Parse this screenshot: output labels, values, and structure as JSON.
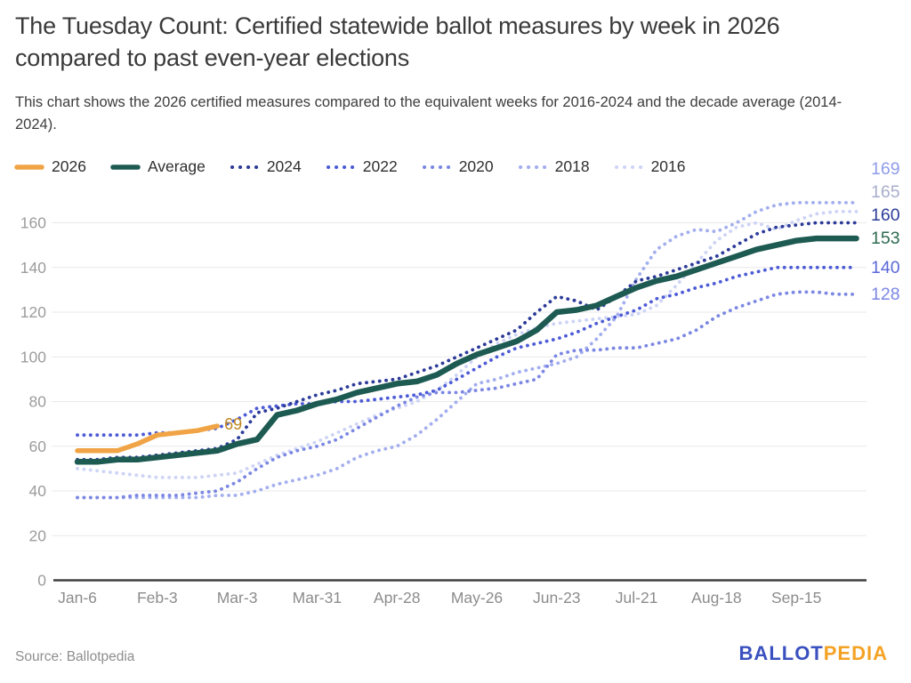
{
  "header": {
    "title": "The Tuesday Count: Certified statewide ballot measures by week in 2026 compared to past even-year elections",
    "subtitle": "This chart shows the 2026 certified measures compared to the equivalent weeks for 2016-2024 and the decade average (2014-2024)."
  },
  "footer": {
    "source": "Source: Ballotpedia",
    "logo": {
      "part1": "BALLOT",
      "part2": "PEDIA"
    }
  },
  "chart_data": {
    "type": "line",
    "x": [
      "Jan-6",
      "Jan-13",
      "Jan-20",
      "Jan-27",
      "Feb-3",
      "Feb-10",
      "Feb-17",
      "Feb-24",
      "Mar-3",
      "Mar-10",
      "Mar-17",
      "Mar-24",
      "Mar-31",
      "Apr-7",
      "Apr-14",
      "Apr-21",
      "Apr-28",
      "May-5",
      "May-12",
      "May-19",
      "May-26",
      "Jun-2",
      "Jun-9",
      "Jun-16",
      "Jun-23",
      "Jun-30",
      "Jul-7",
      "Jul-14",
      "Jul-21",
      "Jul-28",
      "Aug-4",
      "Aug-11",
      "Aug-18",
      "Aug-25",
      "Sep-1",
      "Sep-8",
      "Sep-15",
      "Sep-22",
      "Sep-29",
      "Oct-6"
    ],
    "x_tick_labels": [
      "Jan-6",
      "Feb-3",
      "Mar-3",
      "Mar-31",
      "Apr-28",
      "May-26",
      "Jun-23",
      "Jul-21",
      "Aug-18",
      "Sep-15"
    ],
    "x_tick_indices": [
      0,
      4,
      8,
      12,
      16,
      20,
      24,
      28,
      32,
      36
    ],
    "ylim": [
      0,
      160
    ],
    "y_ticks": [
      0,
      20,
      40,
      60,
      80,
      100,
      120,
      140,
      160
    ],
    "grid": "horizontal",
    "legend_position": "top-left",
    "series": [
      {
        "name": "2026",
        "style": "solid",
        "color": "#f0a445",
        "label_color": "#c0861f",
        "end_label": null,
        "values": [
          58,
          58,
          58,
          61,
          65,
          66,
          67,
          69
        ]
      },
      {
        "name": "Average",
        "style": "solid",
        "color": "#1d5a52",
        "label_color": "#2e6b52",
        "end_label": "153",
        "values": [
          53,
          53,
          54,
          54,
          55,
          56,
          57,
          58,
          61,
          63,
          74,
          76,
          79,
          81,
          84,
          86,
          88,
          89,
          92,
          97,
          101,
          104,
          107,
          112,
          120,
          121,
          123,
          127,
          131,
          134,
          136,
          139,
          142,
          145,
          148,
          150,
          152,
          153,
          153,
          153
        ]
      },
      {
        "name": "2024",
        "style": "dotted",
        "color": "#2c3b99",
        "label_color": "#2c3b99",
        "end_label": "160",
        "values": [
          54,
          54,
          55,
          55,
          56,
          57,
          58,
          59,
          63,
          75,
          77,
          80,
          83,
          85,
          88,
          89,
          90,
          93,
          96,
          100,
          104,
          108,
          112,
          120,
          127,
          125,
          121,
          127,
          134,
          136,
          139,
          142,
          145,
          150,
          155,
          158,
          159,
          160,
          160,
          160
        ]
      },
      {
        "name": "2022",
        "style": "dotted",
        "color": "#4d5cd6",
        "label_color": "#5b68d8",
        "end_label": "140",
        "values": [
          65,
          65,
          65,
          65,
          66,
          66,
          67,
          68,
          72,
          77,
          78,
          79,
          79,
          80,
          80,
          81,
          82,
          83,
          85,
          90,
          95,
          100,
          104,
          106,
          108,
          111,
          115,
          118,
          121,
          126,
          128,
          131,
          133,
          136,
          138,
          140,
          140,
          140,
          140,
          140
        ]
      },
      {
        "name": "2020",
        "style": "dotted",
        "color": "#7b87e3",
        "label_color": "#7b87e3",
        "end_label": "128",
        "values": [
          37,
          37,
          37,
          38,
          38,
          38,
          39,
          40,
          44,
          50,
          55,
          58,
          60,
          63,
          68,
          73,
          78,
          82,
          84,
          84,
          85,
          86,
          88,
          90,
          101,
          103,
          103,
          104,
          104,
          106,
          108,
          112,
          118,
          122,
          125,
          128,
          129,
          129,
          128,
          128
        ]
      },
      {
        "name": "2018",
        "style": "dotted",
        "color": "#a3aeee",
        "label_color": "#8f9ce9",
        "end_label": "169",
        "values": [
          37,
          37,
          37,
          37,
          37,
          37,
          37,
          38,
          38,
          40,
          43,
          45,
          47,
          50,
          55,
          58,
          60,
          65,
          72,
          80,
          88,
          90,
          93,
          95,
          97,
          100,
          108,
          118,
          135,
          148,
          154,
          157,
          156,
          160,
          165,
          168,
          169,
          169,
          169,
          169
        ]
      },
      {
        "name": "2016",
        "style": "dotted",
        "color": "#cdd4f5",
        "label_color": "#a9aecb",
        "end_label": "165",
        "values": [
          50,
          49,
          48,
          47,
          46,
          46,
          46,
          47,
          48,
          52,
          56,
          59,
          62,
          66,
          70,
          74,
          77,
          80,
          85,
          92,
          100,
          106,
          110,
          113,
          115,
          116,
          117,
          118,
          119,
          123,
          132,
          142,
          152,
          158,
          160,
          157,
          161,
          164,
          165,
          165
        ]
      }
    ],
    "annotations": [
      {
        "text": "69",
        "series": "2026",
        "color": "#c0861f"
      }
    ]
  }
}
